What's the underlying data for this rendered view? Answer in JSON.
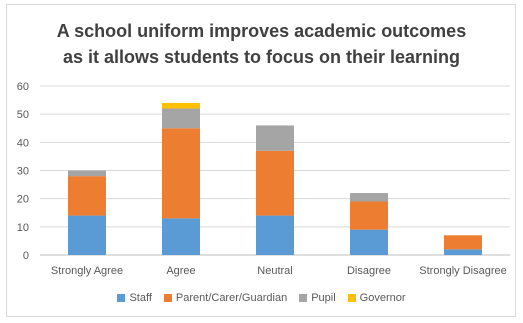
{
  "chart_data": {
    "type": "bar",
    "stacked": true,
    "title_lines": [
      "A school uniform improves academic outcomes",
      "as it allows students to focus on their learning"
    ],
    "categories": [
      "Strongly Agree",
      "Agree",
      "Neutral",
      "Disagree",
      "Strongly Disagree"
    ],
    "series": [
      {
        "name": "Staff",
        "color": "#5b9bd5",
        "values": [
          14,
          13,
          14,
          9,
          2
        ]
      },
      {
        "name": "Parent/Carer/Guardian",
        "color": "#ed7d31",
        "values": [
          14,
          32,
          23,
          10,
          5
        ]
      },
      {
        "name": "Pupil",
        "color": "#a5a5a5",
        "values": [
          2,
          7,
          9,
          3,
          0
        ]
      },
      {
        "name": "Governor",
        "color": "#ffc000",
        "values": [
          0,
          2,
          0,
          0,
          0
        ]
      }
    ],
    "ylim": [
      0,
      60
    ],
    "yticks": [
      0,
      10,
      20,
      30,
      40,
      50,
      60
    ],
    "grid": true,
    "legend_position": "bottom"
  }
}
